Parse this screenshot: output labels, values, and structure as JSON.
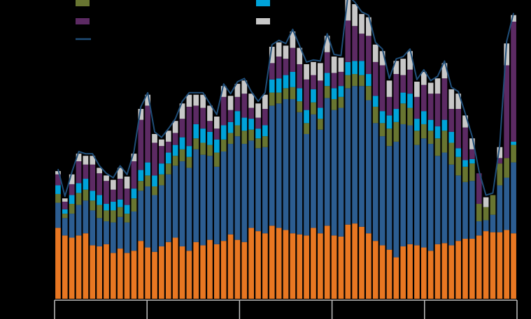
{
  "chart_data": {
    "type": "bar",
    "stacked": true,
    "title": "",
    "xlabel": "",
    "ylabel": "",
    "ylim": [
      0,
      27
    ],
    "grid": false,
    "legend": "top",
    "bar_count": 67,
    "colors": {
      "background": "#000000",
      "axis": "#bfbfbf",
      "line": "#1f4e79"
    },
    "series": [
      {
        "key": "orange",
        "color": "#e87722",
        "values": [
          6.5,
          5.8,
          5.6,
          5.8,
          6.0,
          4.9,
          4.8,
          5.0,
          4.2,
          4.6,
          4.2,
          4.4,
          5.3,
          4.7,
          4.3,
          4.8,
          5.2,
          5.6,
          4.8,
          4.4,
          5.2,
          4.9,
          5.4,
          5.0,
          5.3,
          5.9,
          5.4,
          5.2,
          6.5,
          6.2,
          6.0,
          6.7,
          6.5,
          6.3,
          6.0,
          5.9,
          5.8,
          6.5,
          6.0,
          6.7,
          5.8,
          5.7,
          6.8,
          6.9,
          6.6,
          6.0,
          5.3,
          4.9,
          4.5,
          3.8,
          4.8,
          5.0,
          4.9,
          4.7,
          4.4,
          5.0,
          5.1,
          4.9,
          5.3,
          5.5,
          5.5,
          5.8,
          6.2,
          6.1,
          6.1,
          6.3,
          6.0
        ]
      },
      {
        "key": "blue",
        "color": "#2c5d91",
        "values": [
          2.3,
          1.6,
          2.2,
          2.8,
          3.0,
          3.2,
          2.6,
          2.1,
          2.8,
          2.9,
          2.8,
          3.6,
          4.6,
          5.6,
          5.2,
          5.6,
          6.2,
          6.6,
          7.8,
          7.6,
          8.5,
          8.3,
          7.7,
          7.1,
          8.2,
          8.3,
          9.5,
          9.0,
          8.0,
          7.6,
          7.9,
          11.0,
          11.4,
          12.0,
          12.3,
          11.2,
          9.3,
          10.4,
          9.5,
          11.7,
          11.5,
          11.8,
          12.5,
          12.6,
          12.9,
          12.2,
          10.8,
          10.0,
          9.5,
          10.6,
          11.2,
          10.9,
          9.2,
          10.0,
          9.8,
          8.1,
          8.3,
          7.4,
          6.0,
          5.2,
          5.3,
          1.3,
          1.0,
          1.6,
          4.3,
          4.8,
          6.5
        ]
      },
      {
        "key": "olive",
        "color": "#687531",
        "values": [
          0.8,
          0.4,
          0.9,
          1.1,
          1.0,
          0.9,
          1.2,
          1.0,
          1.1,
          0.9,
          0.8,
          1.2,
          0.9,
          1.0,
          0.8,
          1.0,
          1.0,
          0.9,
          1.1,
          1.0,
          1.0,
          1.1,
          1.0,
          1.3,
          1.1,
          1.0,
          1.0,
          1.2,
          1.0,
          0.9,
          1.0,
          1.2,
          1.0,
          1.0,
          1.1,
          1.0,
          1.0,
          1.1,
          1.0,
          1.1,
          1.0,
          1.0,
          1.2,
          1.1,
          1.0,
          1.3,
          1.5,
          1.2,
          1.6,
          1.8,
          1.9,
          1.6,
          1.3,
          1.3,
          1.2,
          1.6,
          2.0,
          2.0,
          1.7,
          1.4,
          1.6,
          1.6,
          1.2,
          1.8,
          2.0,
          1.8,
          1.6
        ]
      },
      {
        "key": "cyan",
        "color": "#00a3d9",
        "values": [
          0.8,
          0.4,
          0.8,
          0.9,
          1.0,
          0.9,
          0.9,
          0.6,
          0.8,
          0.7,
          0.8,
          0.9,
          1.0,
          1.2,
          1.0,
          1.0,
          1.0,
          1.0,
          1.1,
          1.0,
          1.3,
          1.3,
          1.2,
          1.2,
          1.3,
          1.0,
          1.3,
          1.2,
          1.0,
          0.9,
          1.0,
          1.2,
          1.3,
          1.2,
          1.4,
          1.2,
          1.2,
          1.2,
          1.0,
          1.2,
          1.0,
          1.0,
          1.2,
          1.2,
          1.3,
          1.1,
          1.0,
          1.1,
          1.2,
          1.2,
          1.0,
          1.3,
          1.1,
          1.2,
          1.0,
          1.1,
          1.0,
          1.0,
          0.8,
          0.6,
          0.4,
          0.0,
          0.0,
          0.0,
          0.0,
          0.0,
          0.3
        ]
      },
      {
        "key": "purple",
        "color": "#5c2a63",
        "values": [
          1.0,
          0.7,
          1.0,
          2.0,
          1.3,
          2.4,
          2.0,
          2.1,
          1.1,
          1.9,
          1.5,
          2.5,
          4.6,
          5.2,
          3.0,
          1.6,
          1.0,
          1.1,
          1.7,
          3.6,
          1.7,
          1.9,
          1.0,
          1.0,
          2.6,
          1.1,
          1.3,
          2.2,
          1.0,
          1.0,
          1.5,
          1.5,
          2.0,
          1.5,
          2.2,
          2.2,
          2.8,
          1.3,
          2.5,
          1.9,
          1.4,
          1.3,
          3.8,
          3.2,
          2.5,
          3.5,
          3.1,
          4.2,
          1.7,
          3.2,
          1.6,
          2.2,
          2.0,
          2.4,
          2.4,
          3.0,
          3.8,
          2.1,
          3.6,
          3.0,
          0.9,
          2.8,
          0.0,
          0.0,
          0.5,
          8.5,
          11.0
        ]
      },
      {
        "key": "gray",
        "color": "#c8c8c8",
        "values": [
          0.3,
          0.3,
          0.9,
          0.7,
          0.8,
          0.8,
          0.5,
          0.5,
          0.9,
          1.0,
          1.1,
          0.7,
          1.0,
          1.0,
          0.8,
          0.6,
          1.0,
          1.1,
          1.4,
          1.1,
          1.0,
          1.2,
          1.4,
          1.1,
          1.0,
          1.3,
          1.2,
          1.2,
          1.3,
          1.3,
          1.3,
          1.5,
          1.3,
          1.2,
          1.5,
          1.5,
          1.4,
          1.2,
          1.6,
          1.5,
          1.5,
          1.3,
          2.1,
          2.0,
          1.8,
          1.7,
          1.6,
          1.3,
          1.5,
          1.2,
          1.5,
          1.7,
          1.4,
          1.2,
          1.0,
          1.4,
          1.4,
          1.8,
          1.4,
          1.1,
          1.0,
          0.0,
          0.9,
          0.0,
          1.0,
          2.0,
          0.6
        ]
      }
    ],
    "line": {
      "key": "total",
      "color": "#1f4e79",
      "values": []
    },
    "x_ticks": 5
  }
}
